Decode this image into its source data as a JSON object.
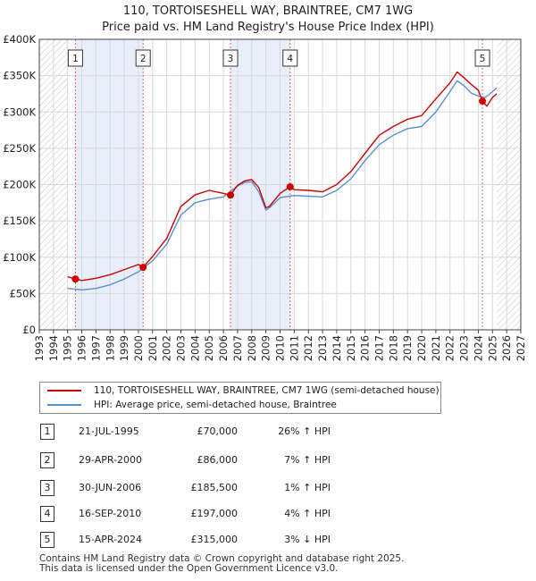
{
  "title_line1": "110, TORTOISESHELL WAY, BRAINTREE, CM7 1WG",
  "title_line2": "Price paid vs. HM Land Registry's House Price Index (HPI)",
  "colors": {
    "property": "#cc0000",
    "hpi": "#5b8fd0",
    "shade": "#e8eefa",
    "hatch": "#bbbbbb",
    "vline": "#e06060"
  },
  "chart_data": {
    "type": "line",
    "title": "110, TORTOISESHELL WAY, BRAINTREE, CM7 1WG — Price paid vs. HM Land Registry's House Price Index (HPI)",
    "xlim": [
      1993,
      2027
    ],
    "ylim": [
      0,
      400000
    ],
    "y_ticks": [
      0,
      50000,
      100000,
      150000,
      200000,
      250000,
      300000,
      350000,
      400000
    ],
    "y_tick_labels": [
      "£0",
      "£50K",
      "£100K",
      "£150K",
      "£200K",
      "£250K",
      "£300K",
      "£350K",
      "£400K"
    ],
    "x_ticks": [
      1993,
      1994,
      1995,
      1996,
      1997,
      1998,
      1999,
      2000,
      2001,
      2002,
      2003,
      2004,
      2005,
      2006,
      2007,
      2008,
      2009,
      2010,
      2011,
      2012,
      2013,
      2014,
      2015,
      2016,
      2017,
      2018,
      2019,
      2020,
      2021,
      2022,
      2023,
      2024,
      2025,
      2026,
      2027
    ],
    "data_start": 1995.0,
    "data_end": 2025.3,
    "shaded_periods": [
      [
        1995.55,
        2000.33
      ],
      [
        2006.5,
        2010.71
      ]
    ],
    "series": [
      {
        "name": "110, TORTOISESHELL WAY, BRAINTREE, CM7 1WG (semi-detached house)",
        "x": [
          1995.0,
          1995.55,
          1996,
          1997,
          1998,
          1999,
          2000.0,
          2000.33,
          2001,
          2002,
          2003,
          2004,
          2005,
          2006,
          2006.5,
          2007,
          2007.5,
          2008,
          2008.5,
          2009.0,
          2009.25,
          2010,
          2010.71,
          2011,
          2012,
          2013,
          2014,
          2015,
          2016,
          2017,
          2018,
          2019,
          2020,
          2021,
          2022,
          2022.5,
          2023,
          2023.5,
          2024.0,
          2024.29,
          2024.6,
          2025.0,
          2025.3
        ],
        "values": [
          73000,
          70000,
          68000,
          71000,
          76000,
          83000,
          90000,
          86000,
          101000,
          126000,
          170000,
          186000,
          192000,
          188000,
          185500,
          199000,
          205000,
          207000,
          196000,
          168000,
          170000,
          188000,
          197000,
          193000,
          192000,
          190000,
          200000,
          218000,
          243000,
          268000,
          280000,
          290000,
          295000,
          318000,
          340000,
          355000,
          347000,
          338000,
          330000,
          315000,
          308000,
          320000,
          325000
        ]
      },
      {
        "name": "HPI: Average price, semi-detached house, Braintree",
        "x": [
          1995.0,
          1996,
          1997,
          1998,
          1999,
          2000,
          2001,
          2002,
          2003,
          2004,
          2005,
          2006,
          2007,
          2007.5,
          2008,
          2008.5,
          2009.0,
          2009.25,
          2010,
          2011,
          2012,
          2013,
          2014,
          2015,
          2016,
          2017,
          2018,
          2019,
          2020,
          2021,
          2022,
          2022.5,
          2023,
          2023.5,
          2024,
          2024.5,
          2025.0,
          2025.3
        ],
        "values": [
          57000,
          55000,
          57000,
          62000,
          70000,
          80000,
          95000,
          118000,
          158000,
          175000,
          180000,
          183000,
          198000,
          203000,
          204000,
          190000,
          165000,
          168000,
          182000,
          185000,
          184000,
          183000,
          192000,
          208000,
          233000,
          255000,
          268000,
          277000,
          280000,
          300000,
          328000,
          343000,
          336000,
          326000,
          322000,
          320000,
          328000,
          333000
        ]
      }
    ],
    "transactions": [
      {
        "label": "1",
        "x": 1995.55,
        "y": 70000,
        "date": "21-JUL-1995",
        "price": "£70,000",
        "hpi": "26% ↑ HPI"
      },
      {
        "label": "2",
        "x": 2000.33,
        "y": 86000,
        "date": "29-APR-2000",
        "price": "£86,000",
        "hpi": "7% ↑ HPI"
      },
      {
        "label": "3",
        "x": 2006.5,
        "y": 185500,
        "date": "30-JUN-2006",
        "price": "£185,500",
        "hpi": "1% ↑ HPI"
      },
      {
        "label": "4",
        "x": 2010.71,
        "y": 197000,
        "date": "16-SEP-2010",
        "price": "£197,000",
        "hpi": "4% ↑ HPI"
      },
      {
        "label": "5",
        "x": 2024.29,
        "y": 315000,
        "date": "15-APR-2024",
        "price": "£315,000",
        "hpi": "3% ↓ HPI"
      }
    ],
    "legend": [
      "110, TORTOISESHELL WAY, BRAINTREE, CM7 1WG (semi-detached house)",
      "HPI: Average price, semi-detached house, Braintree"
    ]
  },
  "footer": {
    "line1": "Contains HM Land Registry data © Crown copyright and database right 2025.",
    "line2": "This data is licensed under the Open Government Licence v3.0."
  }
}
